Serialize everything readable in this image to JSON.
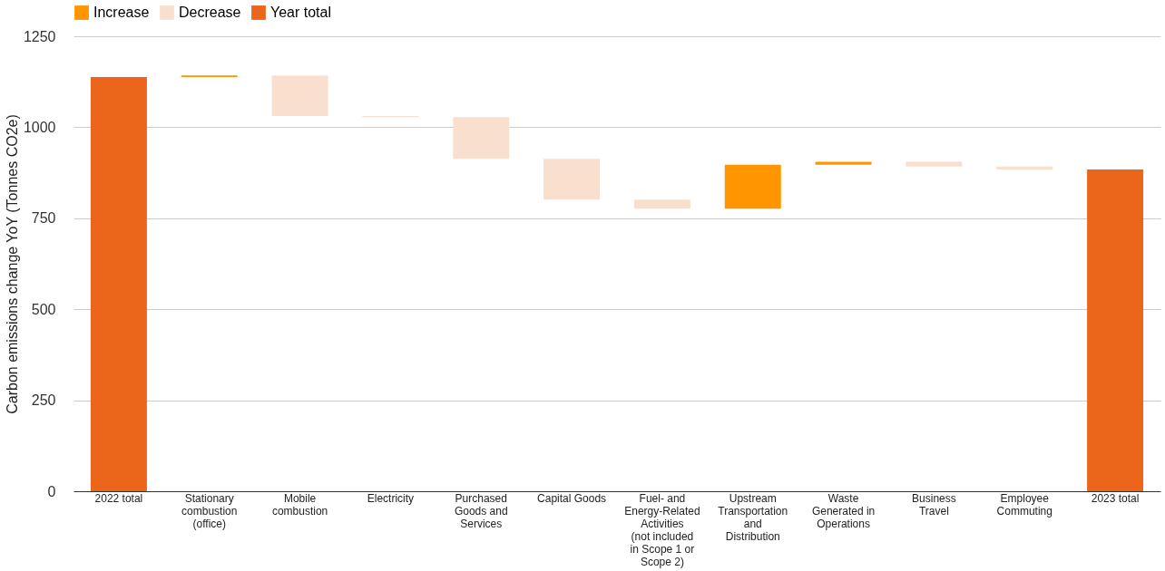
{
  "chart_data": {
    "type": "bar",
    "ylabel": "Carbon emissions change YoY (Tonnes CO2e)",
    "categories": [
      "2022 total",
      "Stationary combustion (office)",
      "Mobile combustion",
      "Electricity",
      "Purchased Goods and Services",
      "Capital Goods",
      "Fuel- and Energy-Related Activities (not included in Scope 1 or Scope 2)",
      "Upstream Transportation and Distribution",
      "Waste Generated in Operations",
      "Business Travel",
      "Employee Commuting",
      "2023 total"
    ],
    "series": [
      {
        "name": "Increase",
        "color": "#ff9500",
        "base": [
          null,
          1138,
          null,
          null,
          null,
          null,
          null,
          776,
          897,
          null,
          null,
          null
        ],
        "values": [
          null,
          4,
          null,
          null,
          null,
          null,
          null,
          121,
          8,
          null,
          null,
          null
        ]
      },
      {
        "name": "Decrease",
        "color": "#f9e0ce",
        "base": [
          null,
          null,
          1142,
          1031,
          1028,
          913,
          801,
          null,
          null,
          905,
          892,
          null
        ],
        "values": [
          null,
          null,
          -111,
          -3,
          -115,
          -112,
          -25,
          null,
          null,
          -13,
          -8,
          null
        ]
      },
      {
        "name": "Year total",
        "color": "#eb661b",
        "base": [
          0,
          null,
          null,
          null,
          null,
          null,
          null,
          null,
          null,
          null,
          null,
          0
        ],
        "values": [
          1138,
          null,
          null,
          null,
          null,
          null,
          null,
          null,
          null,
          null,
          null,
          884
        ]
      }
    ],
    "ylim": [
      0,
      1250
    ],
    "yticks": [
      0,
      250,
      500,
      750,
      1000,
      1250
    ],
    "grid": "y",
    "legend": "top"
  }
}
